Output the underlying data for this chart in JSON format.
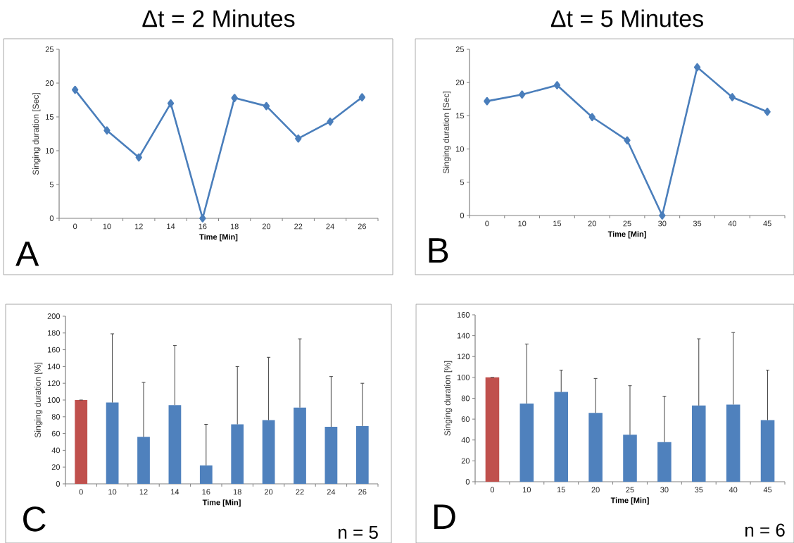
{
  "chart_data": [
    {
      "type": "line",
      "title": "Δt = 2 Minutes",
      "xlabel": "Time [Min]",
      "ylabel": "Singing duration  [Sec]",
      "categories": [
        "0",
        "10",
        "12",
        "14",
        "16",
        "18",
        "20",
        "22",
        "24",
        "26"
      ],
      "values": [
        19,
        13,
        9,
        17,
        0,
        17.8,
        16.6,
        11.8,
        14.3,
        17.9
      ],
      "color": "#4a7ebb",
      "marker": "diamond",
      "ylim": [
        0,
        25
      ],
      "yticks": [
        0,
        5,
        10,
        15,
        20,
        25
      ],
      "annotations": [
        "A"
      ]
    },
    {
      "type": "line",
      "title": "Δt = 5 Minutes",
      "xlabel": "Time [Min]",
      "ylabel": "Singing duration  [Sec]",
      "categories": [
        "0",
        "10",
        "15",
        "20",
        "25",
        "30",
        "35",
        "40",
        "45"
      ],
      "values": [
        17.2,
        18.2,
        19.6,
        14.8,
        11.3,
        0,
        22.3,
        17.8,
        15.6
      ],
      "color": "#4a7ebb",
      "marker": "diamond",
      "ylim": [
        0,
        25
      ],
      "yticks": [
        0,
        5,
        10,
        15,
        20,
        25
      ],
      "annotations": [
        "B"
      ]
    },
    {
      "type": "bar",
      "xlabel": "Time [Min]",
      "ylabel": "Singing duration  [%]",
      "categories": [
        "0",
        "10",
        "12",
        "14",
        "16",
        "18",
        "20",
        "22",
        "24",
        "26"
      ],
      "values": [
        100,
        97,
        56,
        94,
        22,
        71,
        76,
        91,
        68,
        69
      ],
      "errors": [
        0,
        [
          97,
          179
        ],
        [
          56,
          121
        ],
        [
          94,
          165
        ],
        [
          22,
          71
        ],
        [
          71,
          140
        ],
        [
          76,
          151
        ],
        [
          91,
          173
        ],
        [
          68,
          128
        ],
        [
          69,
          120
        ]
      ],
      "colors": [
        "#c0504d",
        "#4f81bd",
        "#4f81bd",
        "#4f81bd",
        "#4f81bd",
        "#4f81bd",
        "#4f81bd",
        "#4f81bd",
        "#4f81bd",
        "#4f81bd"
      ],
      "ylim": [
        0,
        200
      ],
      "yticks": [
        0,
        20,
        40,
        60,
        80,
        100,
        120,
        140,
        160,
        180,
        200
      ],
      "annotations": [
        "C",
        "n = 5"
      ]
    },
    {
      "type": "bar",
      "xlabel": "Time [Min]",
      "ylabel": "Singing duration  [%]",
      "categories": [
        "0",
        "10",
        "15",
        "20",
        "25",
        "30",
        "35",
        "40",
        "45"
      ],
      "values": [
        100,
        75,
        86,
        66,
        45,
        38,
        73,
        74,
        59
      ],
      "errors": [
        0,
        [
          75,
          132
        ],
        [
          86,
          107
        ],
        [
          66,
          99
        ],
        [
          45,
          92
        ],
        [
          38,
          82
        ],
        [
          73,
          137
        ],
        [
          74,
          143
        ],
        [
          59,
          107
        ]
      ],
      "colors": [
        "#c0504d",
        "#4f81bd",
        "#4f81bd",
        "#4f81bd",
        "#4f81bd",
        "#4f81bd",
        "#4f81bd",
        "#4f81bd",
        "#4f81bd"
      ],
      "ylim": [
        0,
        160
      ],
      "yticks": [
        0,
        20,
        40,
        60,
        80,
        100,
        120,
        140,
        160
      ],
      "annotations": [
        "D",
        "n = 6"
      ]
    }
  ]
}
